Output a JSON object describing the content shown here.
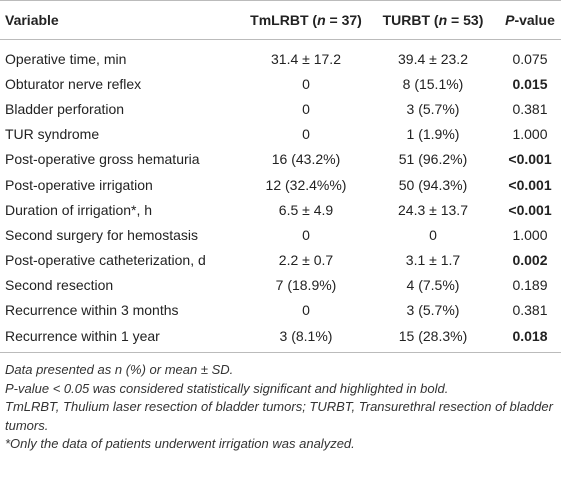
{
  "table": {
    "header": [
      [
        {
          "text": "Variable"
        }
      ],
      [
        {
          "text": "TmLRBT ("
        },
        {
          "text": "n",
          "italic": true
        },
        {
          "text": " = 37)"
        }
      ],
      [
        {
          "text": "TURBT ("
        },
        {
          "text": "n",
          "italic": true
        },
        {
          "text": " = 53)"
        }
      ],
      [
        {
          "text": "P",
          "italic": true
        },
        {
          "text": "-value"
        }
      ]
    ],
    "rows": [
      {
        "cells": [
          "Operative time, min",
          "31.4 ± 17.2",
          "39.4 ± 23.2",
          "0.075"
        ],
        "bold": false
      },
      {
        "cells": [
          "Obturator nerve reflex",
          "0",
          "8 (15.1%)",
          "0.015"
        ],
        "bold": true
      },
      {
        "cells": [
          "Bladder perforation",
          "0",
          "3 (5.7%)",
          "0.381"
        ],
        "bold": false
      },
      {
        "cells": [
          "TUR syndrome",
          "0",
          "1 (1.9%)",
          "1.000"
        ],
        "bold": false
      },
      {
        "cells": [
          "Post-operative gross hematuria",
          "16 (43.2%)",
          "51 (96.2%)",
          "<0.001"
        ],
        "bold": true
      },
      {
        "cells": [
          "Post-operative irrigation",
          "12 (32.4%%)",
          "50 (94.3%)",
          "<0.001"
        ],
        "bold": true
      },
      {
        "cells": [
          "Duration of irrigation*, h",
          "6.5 ± 4.9",
          "24.3 ± 13.7",
          "<0.001"
        ],
        "bold": true
      },
      {
        "cells": [
          "Second surgery for hemostasis",
          "0",
          "0",
          "1.000"
        ],
        "bold": false
      },
      {
        "cells": [
          "Post-operative catheterization, d",
          "2.2 ± 0.7",
          "3.1 ± 1.7",
          "0.002"
        ],
        "bold": true
      },
      {
        "cells": [
          "Second resection",
          "7 (18.9%)",
          "4 (7.5%)",
          "0.189"
        ],
        "bold": false
      },
      {
        "cells": [
          "Recurrence within 3 months",
          "0",
          "3 (5.7%)",
          "0.381"
        ],
        "bold": false
      },
      {
        "cells": [
          "Recurrence within 1 year",
          "3 (8.1%)",
          "15 (28.3%)",
          "0.018"
        ],
        "bold": true
      }
    ],
    "notes": [
      "Data presented as n (%) or mean ± SD.",
      "P-value < 0.05 was considered statistically significant and highlighted in bold.",
      "TmLRBT, Thulium laser resection of bladder tumors; TURBT, Transurethral resection of bladder tumors.",
      "*Only the data of patients underwent irrigation was analyzed."
    ]
  }
}
